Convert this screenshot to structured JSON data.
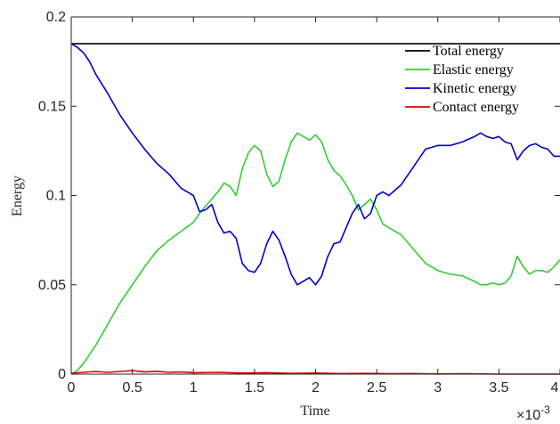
{
  "chart_data": {
    "type": "line",
    "title": "",
    "xlabel": "Time",
    "ylabel": "Energy",
    "x_multiplier_label": "×10",
    "x_multiplier_exponent": "-3",
    "xlim": [
      0,
      4
    ],
    "ylim": [
      0,
      0.2
    ],
    "xticks": [
      "0",
      "0.5",
      "1",
      "1.5",
      "2",
      "2.5",
      "3",
      "3.5",
      "4"
    ],
    "yticks": [
      "0",
      "0.05",
      "0.1",
      "0.15",
      "0.2"
    ],
    "legend_position": "top-right",
    "grid": false,
    "series": [
      {
        "name": "Total energy",
        "color": "#000000",
        "x": [
          0,
          4
        ],
        "y": [
          0.185,
          0.185
        ]
      },
      {
        "name": "Elastic energy",
        "color": "#33cc33",
        "x": [
          0,
          0.05,
          0.1,
          0.2,
          0.3,
          0.4,
          0.5,
          0.6,
          0.7,
          0.8,
          0.9,
          1.0,
          1.05,
          1.1,
          1.15,
          1.2,
          1.25,
          1.3,
          1.35,
          1.4,
          1.45,
          1.5,
          1.55,
          1.6,
          1.65,
          1.7,
          1.75,
          1.8,
          1.85,
          1.9,
          1.95,
          2.0,
          2.05,
          2.1,
          2.15,
          2.2,
          2.25,
          2.3,
          2.35,
          2.4,
          2.45,
          2.5,
          2.55,
          2.6,
          2.65,
          2.7,
          2.8,
          2.9,
          3.0,
          3.1,
          3.2,
          3.3,
          3.35,
          3.4,
          3.45,
          3.5,
          3.55,
          3.6,
          3.65,
          3.7,
          3.75,
          3.8,
          3.85,
          3.9,
          3.95,
          4.0
        ],
        "y": [
          0.0,
          0.002,
          0.006,
          0.016,
          0.028,
          0.04,
          0.05,
          0.06,
          0.069,
          0.075,
          0.08,
          0.085,
          0.09,
          0.094,
          0.098,
          0.102,
          0.107,
          0.105,
          0.1,
          0.115,
          0.124,
          0.128,
          0.125,
          0.112,
          0.105,
          0.108,
          0.12,
          0.13,
          0.135,
          0.133,
          0.131,
          0.134,
          0.13,
          0.12,
          0.114,
          0.111,
          0.106,
          0.1,
          0.092,
          0.095,
          0.098,
          0.092,
          0.084,
          0.082,
          0.08,
          0.078,
          0.07,
          0.062,
          0.058,
          0.056,
          0.055,
          0.052,
          0.05,
          0.05,
          0.051,
          0.05,
          0.051,
          0.055,
          0.066,
          0.06,
          0.056,
          0.058,
          0.058,
          0.057,
          0.06,
          0.064
        ]
      },
      {
        "name": "Kinetic energy",
        "color": "#0000cc",
        "x": [
          0,
          0.05,
          0.1,
          0.15,
          0.2,
          0.3,
          0.4,
          0.5,
          0.6,
          0.7,
          0.8,
          0.9,
          0.95,
          1.0,
          1.05,
          1.1,
          1.15,
          1.2,
          1.25,
          1.3,
          1.35,
          1.4,
          1.45,
          1.5,
          1.55,
          1.6,
          1.65,
          1.7,
          1.75,
          1.8,
          1.85,
          1.9,
          1.95,
          2.0,
          2.05,
          2.1,
          2.15,
          2.2,
          2.25,
          2.3,
          2.35,
          2.4,
          2.45,
          2.5,
          2.55,
          2.6,
          2.65,
          2.7,
          2.8,
          2.9,
          3.0,
          3.1,
          3.2,
          3.3,
          3.35,
          3.4,
          3.45,
          3.5,
          3.55,
          3.6,
          3.65,
          3.7,
          3.75,
          3.8,
          3.85,
          3.9,
          3.95,
          4.0
        ],
        "y": [
          0.185,
          0.183,
          0.18,
          0.175,
          0.168,
          0.157,
          0.145,
          0.135,
          0.126,
          0.118,
          0.112,
          0.104,
          0.102,
          0.1,
          0.091,
          0.092,
          0.095,
          0.085,
          0.079,
          0.08,
          0.076,
          0.062,
          0.058,
          0.057,
          0.062,
          0.073,
          0.08,
          0.075,
          0.066,
          0.056,
          0.05,
          0.052,
          0.054,
          0.05,
          0.055,
          0.066,
          0.073,
          0.074,
          0.082,
          0.09,
          0.095,
          0.087,
          0.09,
          0.1,
          0.102,
          0.1,
          0.103,
          0.106,
          0.116,
          0.126,
          0.128,
          0.128,
          0.13,
          0.133,
          0.135,
          0.133,
          0.132,
          0.133,
          0.13,
          0.129,
          0.12,
          0.125,
          0.128,
          0.129,
          0.127,
          0.126,
          0.122,
          0.122
        ]
      },
      {
        "name": "Contact energy",
        "color": "#dd0000",
        "x": [
          0,
          0.1,
          0.2,
          0.3,
          0.4,
          0.5,
          0.6,
          0.7,
          0.8,
          0.9,
          1.0,
          1.2,
          1.4,
          1.6,
          1.8,
          2.0,
          2.2,
          2.4,
          2.6,
          2.8,
          3.0,
          3.2,
          3.5,
          4.0
        ],
        "y": [
          0.0005,
          0.001,
          0.0015,
          0.001,
          0.0015,
          0.002,
          0.0012,
          0.0016,
          0.001,
          0.0012,
          0.0008,
          0.001,
          0.0006,
          0.0008,
          0.0004,
          0.0006,
          0.0003,
          0.0004,
          0.0002,
          0.0003,
          0.0001,
          0.0002,
          0.0,
          0.0
        ]
      }
    ]
  }
}
